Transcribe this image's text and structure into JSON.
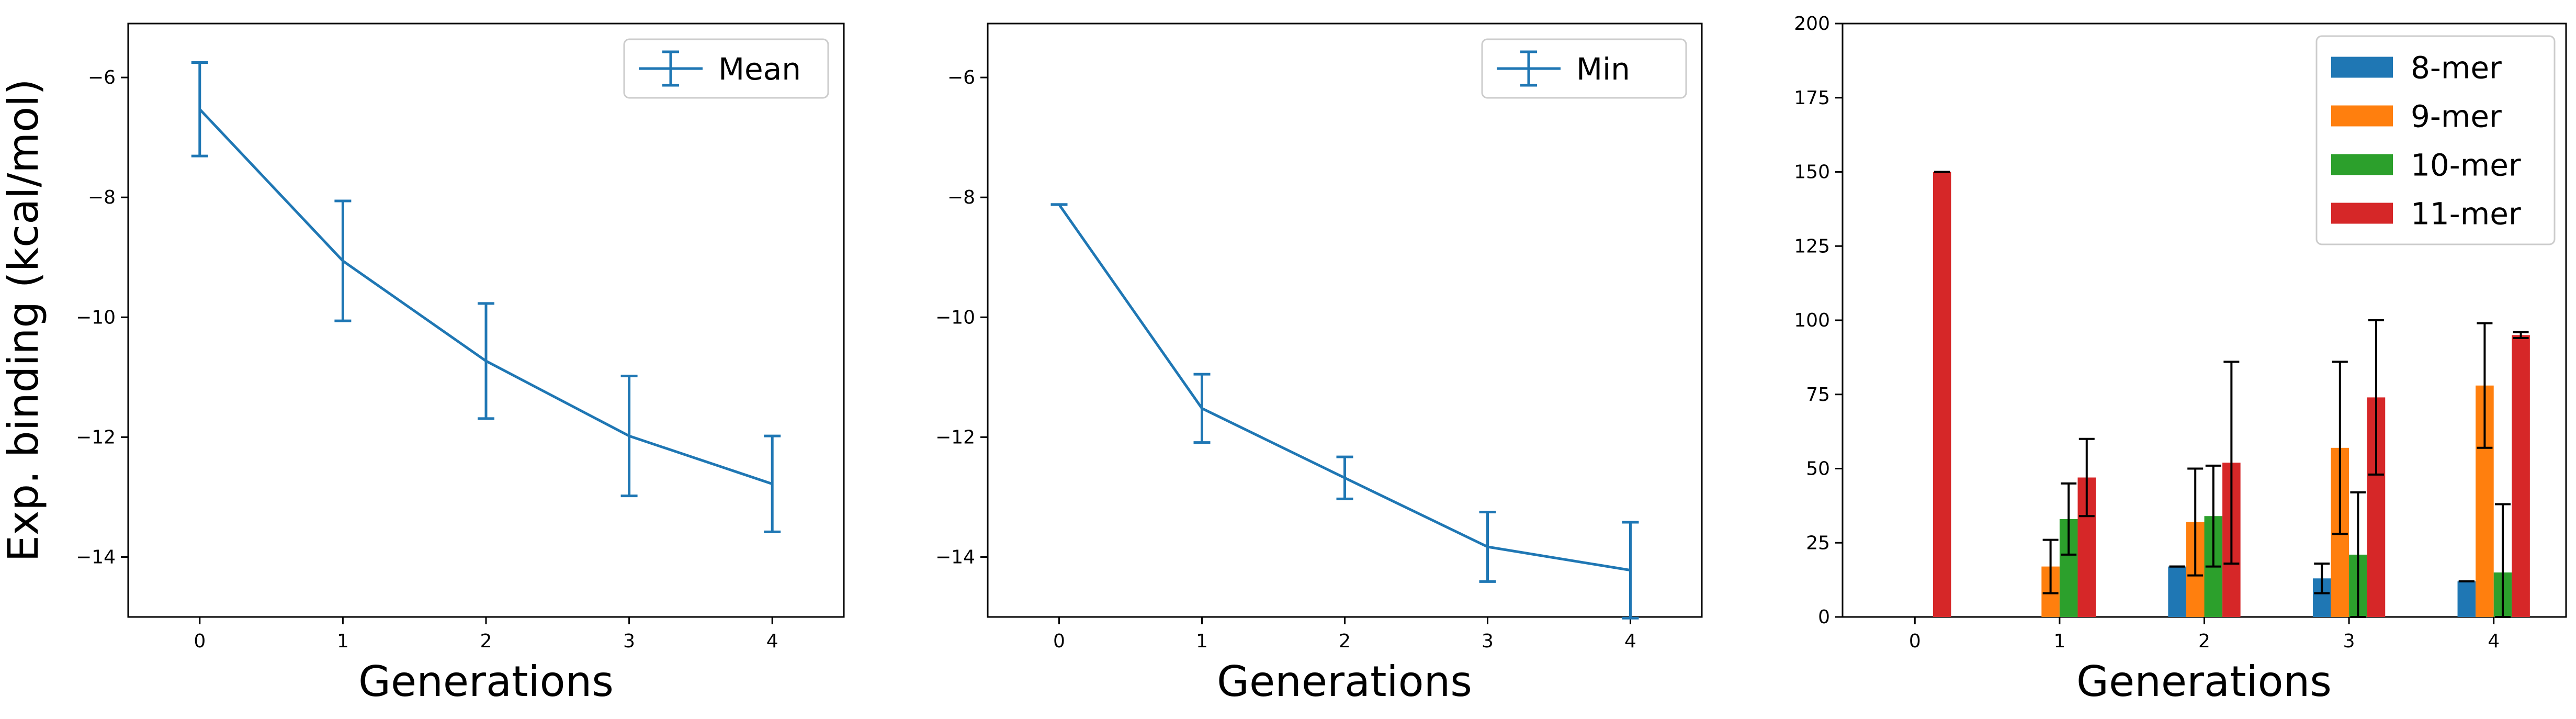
{
  "figure": {
    "shared_ylabel": "Exp. binding (kcal/mol)"
  },
  "chart_data": [
    {
      "type": "line",
      "xlabel": "Generations",
      "ylabel": "Exp. binding (kcal/mol)",
      "x": [
        0,
        1,
        2,
        3,
        4
      ],
      "xticks": [
        "0",
        "1",
        "2",
        "3",
        "4"
      ],
      "xlim": [
        -0.5,
        4.5
      ],
      "ylim": [
        -15,
        -5.1
      ],
      "yticks": [
        -6,
        -8,
        -10,
        -12,
        -14
      ],
      "yticklabels": [
        "−6",
        "−8",
        "−10",
        "−12",
        "−14"
      ],
      "legend_position": "top-right",
      "series": [
        {
          "name": "Mean",
          "color": "#1f77b4",
          "y": [
            -6.53,
            -9.06,
            -10.73,
            -11.98,
            -12.78
          ],
          "yerr": [
            0.78,
            1.0,
            0.96,
            1.0,
            0.8
          ]
        }
      ]
    },
    {
      "type": "line",
      "xlabel": "Generations",
      "x": [
        0,
        1,
        2,
        3,
        4
      ],
      "xticks": [
        "0",
        "1",
        "2",
        "3",
        "4"
      ],
      "xlim": [
        -0.5,
        4.5
      ],
      "ylim": [
        -15,
        -5.1
      ],
      "yticks": [
        -6,
        -8,
        -10,
        -12,
        -14
      ],
      "yticklabels": [
        "−6",
        "−8",
        "−10",
        "−12",
        "−14"
      ],
      "legend_position": "top-right",
      "series": [
        {
          "name": "Min",
          "color": "#1f77b4",
          "y": [
            -8.12,
            -11.52,
            -12.68,
            -13.83,
            -14.22
          ],
          "yerr": [
            0.0,
            0.57,
            0.35,
            0.58,
            0.8
          ]
        }
      ]
    },
    {
      "type": "bar",
      "xlabel": "Generations",
      "categories": [
        "0",
        "1",
        "2",
        "3",
        "4"
      ],
      "xlim": [
        -0.5,
        4.5
      ],
      "ylim": [
        0,
        200
      ],
      "yticks": [
        0,
        25,
        50,
        75,
        100,
        125,
        150,
        175,
        200
      ],
      "legend_position": "top-right",
      "series": [
        {
          "name": "8-mer",
          "color": "#1f77b4",
          "values": [
            0,
            0,
            17,
            13,
            12
          ],
          "yerr": [
            0,
            0,
            0,
            5,
            0
          ]
        },
        {
          "name": "9-mer",
          "color": "#ff7f0e",
          "values": [
            0,
            17,
            32,
            57,
            78
          ],
          "yerr": [
            0,
            9,
            18,
            29,
            21
          ]
        },
        {
          "name": "10-mer",
          "color": "#2ca02c",
          "values": [
            0,
            33,
            34,
            21,
            15
          ],
          "yerr": [
            0,
            12,
            17,
            21,
            23
          ]
        },
        {
          "name": "11-mer",
          "color": "#d62728",
          "values": [
            150,
            47,
            52,
            74,
            95
          ],
          "yerr": [
            0,
            13,
            34,
            26,
            1
          ]
        }
      ]
    }
  ]
}
